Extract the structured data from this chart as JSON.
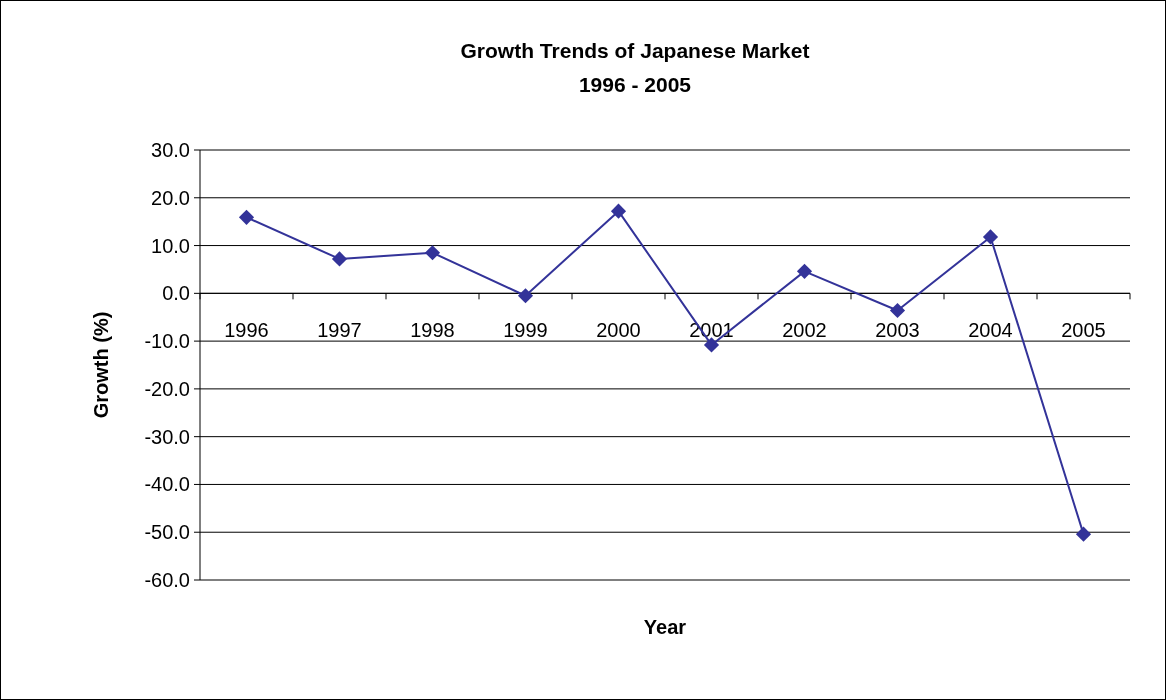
{
  "chart_data": {
    "type": "line",
    "title": "Growth Trends of Japanese Market",
    "subtitle": "1996 - 2005",
    "xlabel": "Year",
    "ylabel": "Growth (%)",
    "categories": [
      "1996",
      "1997",
      "1998",
      "1999",
      "2000",
      "2001",
      "2002",
      "2003",
      "2004",
      "2005"
    ],
    "series": [
      {
        "color": "#333399",
        "values": [
          15.9,
          7.2,
          8.5,
          -0.5,
          17.2,
          -10.8,
          4.6,
          -3.6,
          11.8,
          -50.4
        ]
      }
    ],
    "ylim": [
      -60,
      30
    ],
    "yticks": [
      {
        "value": -60,
        "label": "-60.0"
      },
      {
        "value": -50,
        "label": "-50.0"
      },
      {
        "value": -40,
        "label": "-40.0"
      },
      {
        "value": -30,
        "label": "-30.0"
      },
      {
        "value": -20,
        "label": "-20.0"
      },
      {
        "value": -10,
        "label": "-10.0"
      },
      {
        "value": 0,
        "label": "0.0"
      },
      {
        "value": 10,
        "label": "10.0"
      },
      {
        "value": 20,
        "label": "20.0"
      },
      {
        "value": 30,
        "label": "30.0"
      }
    ],
    "grid": "y",
    "marker": "diamond",
    "line_style": "solid"
  }
}
